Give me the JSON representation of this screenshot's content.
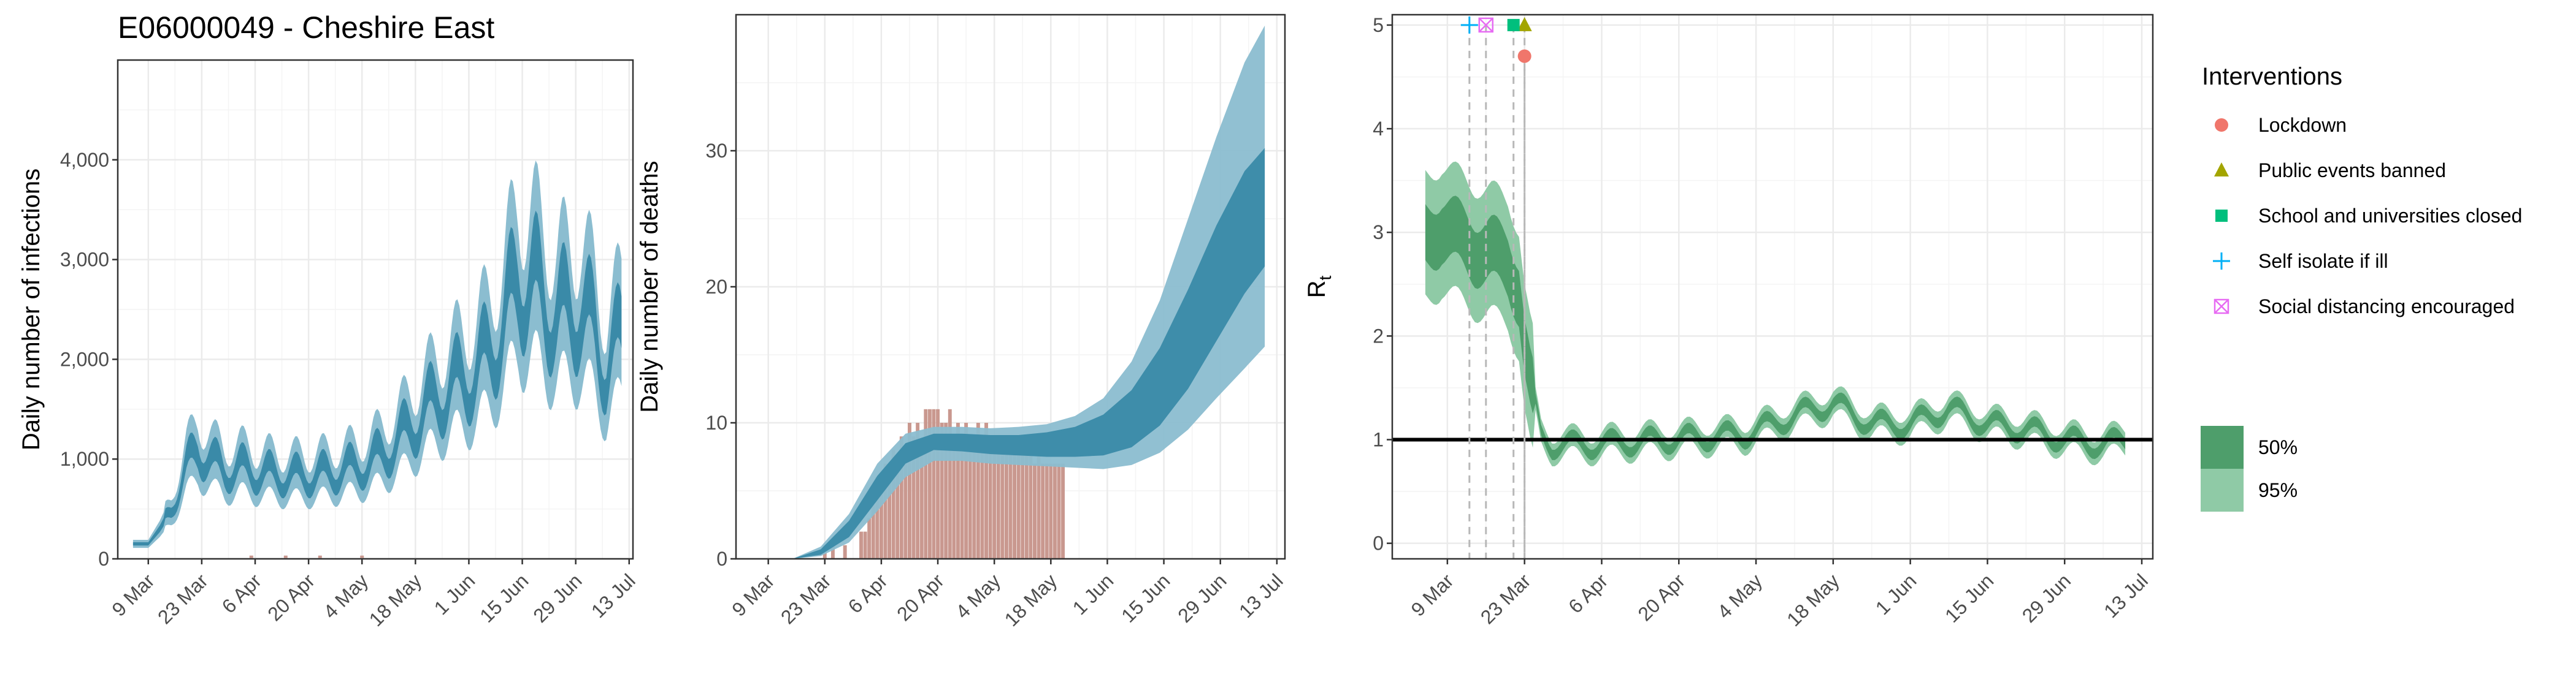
{
  "title": "E06000049 - Cheshire East",
  "colors": {
    "band95": "#8bbdd0",
    "band50": "#3a8aa8",
    "bar": "#c9988f",
    "rt95": "#8fcaa6",
    "rt50": "#4e9e6b",
    "lockdown": "#f0766b",
    "public_events": "#a3a500",
    "school": "#00bf7d",
    "self_isolate": "#00b0f6",
    "social_distancing": "#e76bf3",
    "vline": "#b8b8b8"
  },
  "chart_data": [
    {
      "name": "infections",
      "type": "area",
      "title": "E06000049 - Cheshire East",
      "xlabel": "",
      "ylabel": "Daily number of infections",
      "x_start": "2020-03-01",
      "xlim": [
        "2020-03-01",
        "2020-07-14"
      ],
      "ylim": [
        0,
        5000
      ],
      "yticks": [
        0,
        1000,
        2000,
        3000,
        4000
      ],
      "ytick_labels": [
        "0",
        "1,000",
        "2,000",
        "3,000",
        "4,000"
      ],
      "xtick_labels": [
        "9 Mar",
        "23 Mar",
        "6 Apr",
        "20 Apr",
        "4 May",
        "18 May",
        "1 Jun",
        "15 Jun",
        "29 Jun",
        "13 Jul"
      ],
      "xtick_dates": [
        "2020-03-09",
        "2020-03-23",
        "2020-04-06",
        "2020-04-20",
        "2020-05-04",
        "2020-05-18",
        "2020-06-01",
        "2020-06-15",
        "2020-06-29",
        "2020-07-13"
      ],
      "grid": true,
      "median_keypoints": [
        [
          "2020-03-05",
          150
        ],
        [
          "2020-03-09",
          150
        ],
        [
          "2020-03-12",
          300
        ],
        [
          "2020-03-15",
          500
        ],
        [
          "2020-03-19",
          900
        ],
        [
          "2020-03-22",
          1100
        ],
        [
          "2020-03-26",
          950
        ],
        [
          "2020-03-29",
          880
        ],
        [
          "2020-04-02",
          900
        ],
        [
          "2020-04-08",
          850
        ],
        [
          "2020-04-15",
          820
        ],
        [
          "2020-04-22",
          830
        ],
        [
          "2020-04-29",
          880
        ],
        [
          "2020-05-06",
          950
        ],
        [
          "2020-05-13",
          1150
        ],
        [
          "2020-05-20",
          1450
        ],
        [
          "2020-05-27",
          1700
        ],
        [
          "2020-06-03",
          1850
        ],
        [
          "2020-06-10",
          2300
        ],
        [
          "2020-06-14",
          2800
        ],
        [
          "2020-06-18",
          2700
        ],
        [
          "2020-06-24",
          2400
        ],
        [
          "2020-06-30",
          2500
        ],
        [
          "2020-07-04",
          2250
        ],
        [
          "2020-07-07",
          1900
        ],
        [
          "2020-07-11",
          2200
        ]
      ],
      "weekly_amplitude": 0.18,
      "band50_rel": 0.11,
      "band95_rel": 0.27,
      "bars": [
        [
          "2020-04-05",
          8
        ],
        [
          "2020-04-14",
          8
        ],
        [
          "2020-04-23",
          8
        ],
        [
          "2020-05-04",
          8
        ]
      ]
    },
    {
      "name": "deaths",
      "type": "area",
      "xlabel": "",
      "ylabel": "Daily number of deaths",
      "x_start": "2020-03-01",
      "xlim": [
        "2020-03-01",
        "2020-07-15"
      ],
      "ylim": [
        0,
        40
      ],
      "yticks": [
        0,
        10,
        20,
        30
      ],
      "ytick_labels": [
        "0",
        "10",
        "20",
        "30"
      ],
      "xtick_labels": [
        "9 Mar",
        "23 Mar",
        "6 Apr",
        "20 Apr",
        "4 May",
        "18 May",
        "1 Jun",
        "15 Jun",
        "29 Jun",
        "13 Jul"
      ],
      "xtick_dates": [
        "2020-03-09",
        "2020-03-23",
        "2020-04-06",
        "2020-04-20",
        "2020-05-04",
        "2020-05-18",
        "2020-06-01",
        "2020-06-15",
        "2020-06-29",
        "2020-07-13"
      ],
      "grid": true,
      "bands": [
        [
          "2020-03-05",
          0,
          0,
          0,
          0,
          0
        ],
        [
          "2020-03-15",
          0,
          0,
          0,
          0,
          0
        ],
        [
          "2020-03-22",
          0.2,
          0.3,
          0.5,
          0.7,
          0.9
        ],
        [
          "2020-03-29",
          1.2,
          1.6,
          2.2,
          2.8,
          3.3
        ],
        [
          "2020-04-05",
          3.5,
          4.3,
          5.2,
          6.1,
          7.0
        ],
        [
          "2020-04-12",
          6.0,
          7.0,
          7.8,
          8.5,
          9.2
        ],
        [
          "2020-04-19",
          7.2,
          8.0,
          8.7,
          9.2,
          9.7
        ],
        [
          "2020-04-26",
          7.2,
          7.9,
          8.6,
          9.2,
          9.7
        ],
        [
          "2020-05-03",
          7.0,
          7.7,
          8.5,
          9.1,
          9.6
        ],
        [
          "2020-05-10",
          6.9,
          7.6,
          8.4,
          9.1,
          9.7
        ],
        [
          "2020-05-17",
          6.8,
          7.5,
          8.5,
          9.3,
          9.9
        ],
        [
          "2020-05-24",
          6.7,
          7.5,
          8.7,
          9.7,
          10.5
        ],
        [
          "2020-05-31",
          6.6,
          7.6,
          9.1,
          10.6,
          11.8
        ],
        [
          "2020-06-07",
          6.9,
          8.2,
          10.3,
          12.4,
          14.5
        ],
        [
          "2020-06-14",
          7.8,
          9.8,
          12.5,
          15.5,
          19.0
        ],
        [
          "2020-06-21",
          9.5,
          12.5,
          16.0,
          19.8,
          25.0
        ],
        [
          "2020-06-28",
          11.8,
          16.0,
          20.4,
          24.5,
          31.0
        ],
        [
          "2020-07-05",
          14.0,
          19.5,
          24.6,
          28.5,
          36.5
        ],
        [
          "2020-07-10",
          15.6,
          21.5,
          26.7,
          30.2,
          39.2
        ]
      ],
      "bars": [
        [
          "2020-03-23",
          1
        ],
        [
          "2020-03-25",
          1
        ],
        [
          "2020-03-28",
          1
        ],
        [
          "2020-04-01",
          2
        ],
        [
          "2020-04-02",
          2
        ],
        [
          "2020-04-03",
          3
        ],
        [
          "2020-04-04",
          4
        ],
        [
          "2020-04-05",
          6
        ],
        [
          "2020-04-06",
          5
        ],
        [
          "2020-04-07",
          7
        ],
        [
          "2020-04-08",
          6
        ],
        [
          "2020-04-09",
          8
        ],
        [
          "2020-04-10",
          7
        ],
        [
          "2020-04-11",
          9
        ],
        [
          "2020-04-12",
          8
        ],
        [
          "2020-04-13",
          10
        ],
        [
          "2020-04-14",
          9
        ],
        [
          "2020-04-15",
          10
        ],
        [
          "2020-04-16",
          8
        ],
        [
          "2020-04-17",
          11
        ],
        [
          "2020-04-18",
          11
        ],
        [
          "2020-04-19",
          11
        ],
        [
          "2020-04-20",
          11
        ],
        [
          "2020-04-21",
          10
        ],
        [
          "2020-04-22",
          10
        ],
        [
          "2020-04-23",
          11
        ],
        [
          "2020-04-24",
          9
        ],
        [
          "2020-04-25",
          10
        ],
        [
          "2020-04-26",
          9
        ],
        [
          "2020-04-27",
          10
        ],
        [
          "2020-04-28",
          9
        ],
        [
          "2020-04-29",
          9
        ],
        [
          "2020-04-30",
          10
        ],
        [
          "2020-05-01",
          9
        ],
        [
          "2020-05-02",
          10
        ],
        [
          "2020-05-03",
          9
        ],
        [
          "2020-05-04",
          9
        ],
        [
          "2020-05-05",
          9
        ],
        [
          "2020-05-06",
          8
        ],
        [
          "2020-05-07",
          8
        ],
        [
          "2020-05-08",
          8
        ],
        [
          "2020-05-09",
          9
        ],
        [
          "2020-05-10",
          9
        ],
        [
          "2020-05-11",
          8
        ],
        [
          "2020-05-12",
          8
        ],
        [
          "2020-05-13",
          8
        ],
        [
          "2020-05-14",
          7
        ],
        [
          "2020-05-15",
          8
        ],
        [
          "2020-05-16",
          7
        ],
        [
          "2020-05-17",
          7
        ],
        [
          "2020-05-18",
          7
        ],
        [
          "2020-05-19",
          7
        ],
        [
          "2020-05-20",
          7
        ],
        [
          "2020-05-21",
          7
        ]
      ]
    },
    {
      "name": "rt",
      "type": "area",
      "xlabel": "",
      "ylabel": "R",
      "ylabel_sub": "t",
      "x_start": "2020-03-01",
      "xlim": [
        "2020-02-28",
        "2020-07-15"
      ],
      "ylim": [
        -0.15,
        5.1
      ],
      "yticks": [
        0,
        1,
        2,
        3,
        4,
        5
      ],
      "ytick_labels": [
        "0",
        "1",
        "2",
        "3",
        "4",
        "5"
      ],
      "xtick_labels": [
        "9 Mar",
        "23 Mar",
        "6 Apr",
        "20 Apr",
        "4 May",
        "18 May",
        "1 Jun",
        "15 Jun",
        "29 Jun",
        "13 Jul"
      ],
      "xtick_dates": [
        "2020-03-09",
        "2020-03-23",
        "2020-04-06",
        "2020-04-20",
        "2020-05-04",
        "2020-05-18",
        "2020-06-01",
        "2020-06-15",
        "2020-06-29",
        "2020-07-13"
      ],
      "grid": true,
      "reference_line": 1,
      "median_keypoints": [
        [
          "2020-03-05",
          2.95
        ],
        [
          "2020-03-08",
          3.05
        ],
        [
          "2020-03-11",
          2.95
        ],
        [
          "2020-03-14",
          2.85
        ],
        [
          "2020-03-17",
          2.8
        ],
        [
          "2020-03-20",
          2.7
        ],
        [
          "2020-03-22",
          2.45
        ],
        [
          "2020-03-23",
          1.9
        ],
        [
          "2020-03-24",
          1.55
        ],
        [
          "2020-03-26",
          1.05
        ],
        [
          "2020-03-28",
          0.95
        ],
        [
          "2020-04-04",
          0.95
        ],
        [
          "2020-04-18",
          1.0
        ],
        [
          "2020-05-02",
          1.05
        ],
        [
          "2020-05-12",
          1.25
        ],
        [
          "2020-05-18",
          1.35
        ],
        [
          "2020-05-25",
          1.15
        ],
        [
          "2020-06-01",
          1.15
        ],
        [
          "2020-06-08",
          1.3
        ],
        [
          "2020-06-15",
          1.15
        ],
        [
          "2020-06-22",
          1.1
        ],
        [
          "2020-06-29",
          1.0
        ],
        [
          "2020-07-06",
          0.95
        ],
        [
          "2020-07-10",
          1.0
        ]
      ],
      "weekly_amplitude": 0.1,
      "interventions": [
        {
          "name": "Lockdown",
          "date": "2020-03-23",
          "value": 4.7,
          "color_key": "lockdown",
          "shape": "circle"
        },
        {
          "name": "Public events banned",
          "date": "2020-03-23",
          "value": 5.0,
          "color_key": "public_events",
          "shape": "triangle"
        },
        {
          "name": "School and universities closed",
          "date": "2020-03-21",
          "value": 5.0,
          "color_key": "school",
          "shape": "square"
        },
        {
          "name": "Self isolate if ill",
          "date": "2020-03-13",
          "value": 5.0,
          "color_key": "self_isolate",
          "shape": "plus"
        },
        {
          "name": "Social distancing encouraged",
          "date": "2020-03-16",
          "value": 5.0,
          "color_key": "social_distancing",
          "shape": "boxx"
        }
      ]
    }
  ],
  "legend": {
    "title": "Interventions",
    "items": [
      {
        "label": "Lockdown",
        "color_key": "lockdown",
        "shape": "circle"
      },
      {
        "label": "Public events banned",
        "color_key": "public_events",
        "shape": "triangle"
      },
      {
        "label": "School and universities closed",
        "color_key": "school",
        "shape": "square"
      },
      {
        "label": "Self isolate if ill",
        "color_key": "self_isolate",
        "shape": "plus"
      },
      {
        "label": "Social distancing encouraged",
        "color_key": "social_distancing",
        "shape": "boxx"
      }
    ],
    "bands": [
      {
        "label": "50%",
        "color_key": "rt50"
      },
      {
        "label": "95%",
        "color_key": "rt95"
      }
    ]
  }
}
